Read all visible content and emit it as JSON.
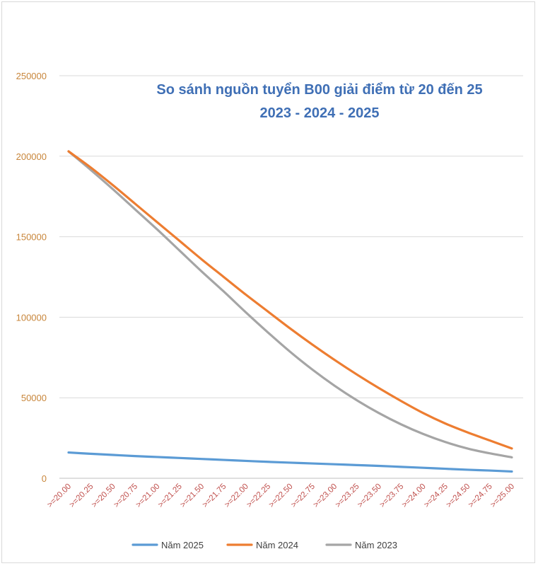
{
  "chart_data": {
    "type": "line",
    "title_line1": "So sánh nguồn tuyển B00 giải điểm từ 20 đến 25",
    "title_line2": "2023 - 2024 - 2025",
    "xlabel": "",
    "ylabel": "",
    "ylim": [
      0,
      250000
    ],
    "yticks": [
      "0",
      "50000",
      "100000",
      "150000",
      "200000",
      "250000"
    ],
    "grid": true,
    "legend_position": "bottom",
    "categories": [
      ">=20.00",
      ">=20.25",
      ">=20.50",
      ">=20.75",
      ">=21.00",
      ">=21.25",
      ">=21.50",
      ">=21.75",
      ">=22.00",
      ">=22.25",
      ">=22.50",
      ">=22.75",
      ">=23.00",
      ">=23.25",
      ">=23.50",
      ">=23.75",
      ">=24.00",
      ">=24.25",
      ">=24.50",
      ">=24.75",
      ">=25.00"
    ],
    "series": [
      {
        "name": "Năm 2025",
        "color": "#5b9bd5",
        "values": [
          16000,
          15200,
          14500,
          13800,
          13200,
          12600,
          12000,
          11400,
          10800,
          10200,
          9700,
          9200,
          8700,
          8200,
          7700,
          7100,
          6500,
          5900,
          5300,
          4800,
          4200
        ]
      },
      {
        "name": "Năm 2024",
        "color": "#ed7d31",
        "values": [
          203000,
          193000,
          182000,
          170500,
          159000,
          147500,
          136000,
          125000,
          114000,
          103500,
          93000,
          83000,
          73500,
          64500,
          56000,
          48000,
          40500,
          34000,
          28500,
          23500,
          18500
        ]
      },
      {
        "name": "Năm 2023",
        "color": "#a5a5a5",
        "values": [
          203000,
          191500,
          179500,
          167000,
          154500,
          141500,
          128500,
          116000,
          103000,
          90500,
          78500,
          67500,
          57500,
          48500,
          40500,
          33500,
          27500,
          22500,
          18500,
          15500,
          13000
        ]
      }
    ]
  }
}
